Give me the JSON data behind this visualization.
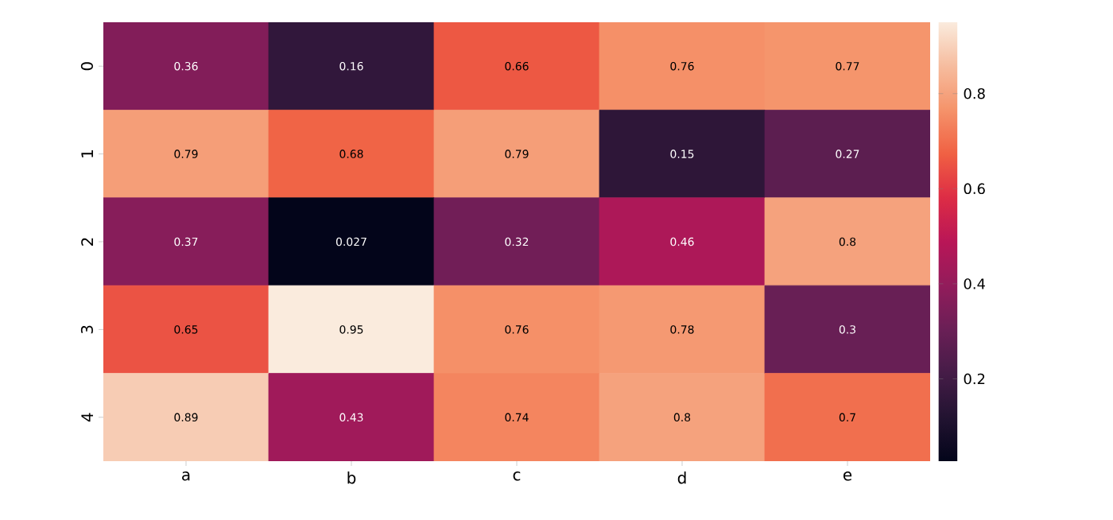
{
  "chart_data": {
    "type": "heatmap",
    "categories": [
      "a",
      "b",
      "c",
      "d",
      "e"
    ],
    "y_categories": [
      "0",
      "1",
      "2",
      "3",
      "4"
    ],
    "cells": [
      [
        0.36,
        0.16,
        0.66,
        0.76,
        0.77
      ],
      [
        0.79,
        0.68,
        0.79,
        0.15,
        0.27
      ],
      [
        0.37,
        0.027,
        0.32,
        0.46,
        0.8
      ],
      [
        0.65,
        0.95,
        0.76,
        0.78,
        0.3
      ],
      [
        0.89,
        0.43,
        0.74,
        0.8,
        0.7
      ]
    ],
    "clim": [
      0.027,
      0.95
    ],
    "cticks": [
      0.2,
      0.4,
      0.6,
      0.8
    ],
    "data_labels": true
  }
}
